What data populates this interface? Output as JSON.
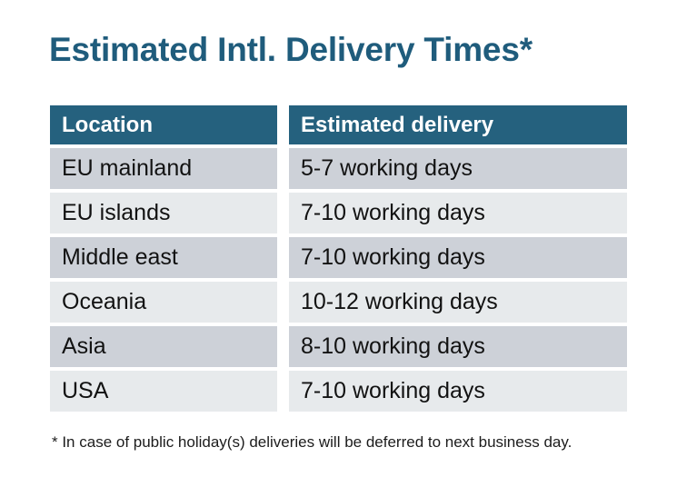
{
  "page": {
    "title": "Estimated Intl. Delivery Times*",
    "footnote": "* In case of public holiday(s) deliveries will be deferred to next business day."
  },
  "table": {
    "columns": [
      "Location",
      "Estimated delivery"
    ],
    "rows": [
      {
        "location": "EU mainland",
        "delivery": "5-7 working days"
      },
      {
        "location": "EU islands",
        "delivery": "7-10 working days"
      },
      {
        "location": "Middle east",
        "delivery": "7-10 working days"
      },
      {
        "location": "Oceania",
        "delivery": "10-12 working days"
      },
      {
        "location": "Asia",
        "delivery": "8-10 working days"
      },
      {
        "location": "USA",
        "delivery": "7-10 working days"
      }
    ]
  },
  "colors": {
    "header_bg": "#25617E",
    "header_text": "#FFFFFF",
    "title_text": "#1F5C7C",
    "row_dark": "#CDD1D8",
    "row_light": "#E7EAEC",
    "body_text": "#121212"
  }
}
